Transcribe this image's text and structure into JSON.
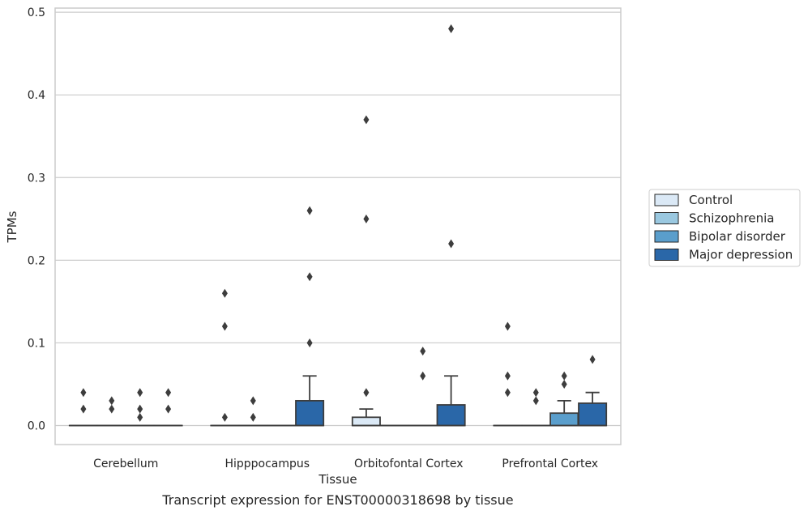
{
  "caption": "Transcript expression for ENST00000318698 by tissue",
  "chart_data": {
    "type": "box",
    "xlabel": "Tissue",
    "ylabel": "TPMs",
    "ylim": [
      -0.023,
      0.505
    ],
    "yticks": [
      0.0,
      0.1,
      0.2,
      0.3,
      0.4,
      0.5
    ],
    "ytick_labels": [
      "0.0",
      "0.1",
      "0.2",
      "0.3",
      "0.4",
      "0.5"
    ],
    "grid": "horizontal",
    "legend_position": "right",
    "categories": [
      "Cerebellum",
      "Hipppocampus",
      "Orbitofontal Cortex",
      "Prefrontal Cortex"
    ],
    "series": [
      {
        "name": "Control",
        "color": "#dbe9f6",
        "boxes": [
          {
            "q1": 0,
            "median": 0,
            "q3": 0,
            "whisker_low": 0,
            "whisker_high": 0,
            "outliers": [
              0.02,
              0.04
            ]
          },
          {
            "q1": 0,
            "median": 0,
            "q3": 0,
            "whisker_low": 0,
            "whisker_high": 0,
            "outliers": [
              0.01,
              0.12,
              0.16
            ]
          },
          {
            "q1": 0,
            "median": 0,
            "q3": 0.01,
            "whisker_low": 0,
            "whisker_high": 0.02,
            "outliers": [
              0.04,
              0.25,
              0.37
            ]
          },
          {
            "q1": 0,
            "median": 0,
            "q3": 0,
            "whisker_low": 0,
            "whisker_high": 0,
            "outliers": [
              0.04,
              0.06,
              0.12
            ]
          }
        ]
      },
      {
        "name": "Schizophrenia",
        "color": "#9ac8e0",
        "boxes": [
          {
            "q1": 0,
            "median": 0,
            "q3": 0,
            "whisker_low": 0,
            "whisker_high": 0,
            "outliers": [
              0.02,
              0.03
            ]
          },
          {
            "q1": 0,
            "median": 0,
            "q3": 0,
            "whisker_low": 0,
            "whisker_high": 0,
            "outliers": [
              0.01,
              0.03
            ]
          },
          {
            "q1": 0,
            "median": 0,
            "q3": 0,
            "whisker_low": 0,
            "whisker_high": 0,
            "outliers": []
          },
          {
            "q1": 0,
            "median": 0,
            "q3": 0,
            "whisker_low": 0,
            "whisker_high": 0,
            "outliers": [
              0.03,
              0.04
            ]
          }
        ]
      },
      {
        "name": "Bipolar disorder",
        "color": "#5a9ecc",
        "boxes": [
          {
            "q1": 0,
            "median": 0,
            "q3": 0,
            "whisker_low": 0,
            "whisker_high": 0,
            "outliers": [
              0.01,
              0.02,
              0.04
            ]
          },
          {
            "q1": 0,
            "median": 0,
            "q3": 0,
            "whisker_low": 0,
            "whisker_high": 0,
            "outliers": []
          },
          {
            "q1": 0,
            "median": 0,
            "q3": 0,
            "whisker_low": 0,
            "whisker_high": 0,
            "outliers": [
              0.06,
              0.09
            ]
          },
          {
            "q1": 0,
            "median": 0,
            "q3": 0.015,
            "whisker_low": 0,
            "whisker_high": 0.03,
            "outliers": [
              0.05,
              0.06
            ]
          }
        ]
      },
      {
        "name": "Major depression",
        "color": "#2a67a8",
        "boxes": [
          {
            "q1": 0,
            "median": 0,
            "q3": 0,
            "whisker_low": 0,
            "whisker_high": 0,
            "outliers": [
              0.02,
              0.04
            ]
          },
          {
            "q1": 0,
            "median": 0,
            "q3": 0.03,
            "whisker_low": 0,
            "whisker_high": 0.06,
            "outliers": [
              0.1,
              0.18,
              0.26
            ]
          },
          {
            "q1": 0,
            "median": 0,
            "q3": 0.025,
            "whisker_low": 0,
            "whisker_high": 0.06,
            "outliers": [
              0.22,
              0.48
            ]
          },
          {
            "q1": 0,
            "median": 0,
            "q3": 0.027,
            "whisker_low": 0,
            "whisker_high": 0.04,
            "outliers": [
              0.08
            ]
          }
        ]
      }
    ]
  }
}
